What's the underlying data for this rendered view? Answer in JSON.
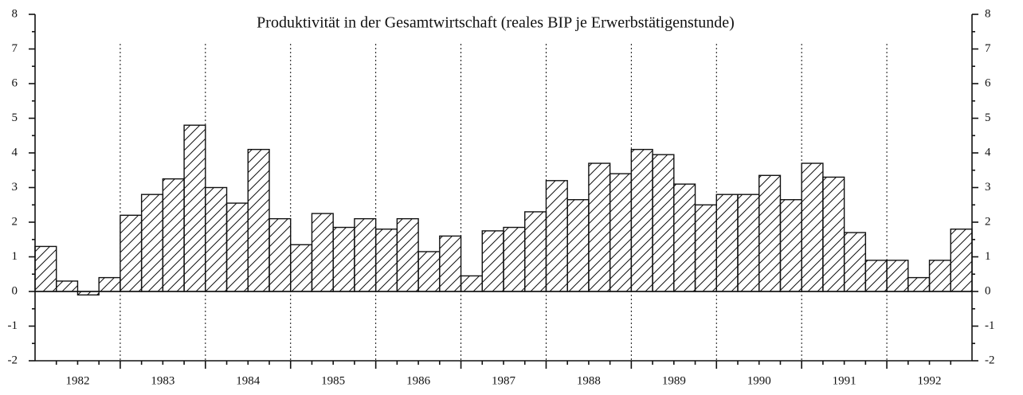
{
  "chart_data": {
    "type": "bar",
    "title": "Produktivität in der Gesamtwirtschaft (reales BIP je Erwerbstätigenstunde)",
    "categories": [
      "1982",
      "1983",
      "1984",
      "1985",
      "1986",
      "1987",
      "1988",
      "1989",
      "1990",
      "1991",
      "1992"
    ],
    "values": [
      [
        1.3,
        0.3,
        -0.1,
        0.4
      ],
      [
        2.2,
        2.8,
        3.25,
        4.8
      ],
      [
        3.0,
        2.55,
        4.1,
        2.1
      ],
      [
        1.35,
        2.25,
        1.85,
        2.1
      ],
      [
        1.8,
        2.1,
        1.15,
        1.6
      ],
      [
        0.45,
        1.75,
        1.85,
        2.3
      ],
      [
        3.2,
        2.65,
        3.7,
        3.4
      ],
      [
        4.1,
        3.95,
        3.1,
        2.5
      ],
      [
        2.8,
        2.8,
        3.35,
        2.65
      ],
      [
        3.7,
        3.3,
        1.7,
        0.9
      ],
      [
        0.9,
        0.4,
        0.9,
        1.8
      ]
    ],
    "color": "#111111",
    "ylim": [
      -2,
      8
    ],
    "yticks": [
      -2,
      -1,
      0,
      1,
      2,
      3,
      4,
      5,
      6,
      7,
      8
    ],
    "y2lim": [
      -2,
      8
    ],
    "y2ticks": [
      -2,
      -1,
      0,
      1,
      2,
      3,
      4,
      5,
      6,
      7,
      8
    ]
  }
}
